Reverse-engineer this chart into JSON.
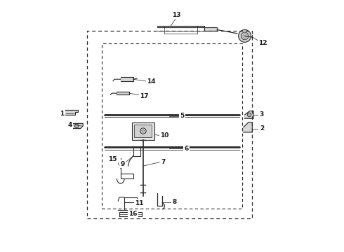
{
  "background_color": "#ffffff",
  "line_color": "#2a2a2a",
  "label_color": "#1a1a1a",
  "figsize": [
    4.9,
    3.6
  ],
  "dpi": 100
}
